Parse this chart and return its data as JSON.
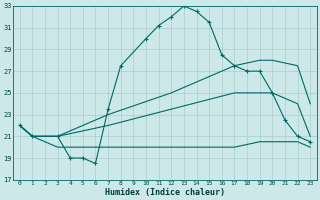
{
  "xlabel": "Humidex (Indice chaleur)",
  "background_color": "#cce8e8",
  "grid_color": "#aacece",
  "line_color": "#006868",
  "xlim": [
    -0.5,
    23.5
  ],
  "ylim": [
    17,
    33
  ],
  "yticks": [
    17,
    19,
    21,
    23,
    25,
    27,
    29,
    31,
    33
  ],
  "xticks": [
    0,
    1,
    2,
    3,
    4,
    5,
    6,
    7,
    8,
    9,
    10,
    11,
    12,
    13,
    14,
    15,
    16,
    17,
    18,
    19,
    20,
    21,
    22,
    23
  ],
  "lines": [
    {
      "x": [
        0,
        1,
        3,
        4,
        5,
        6,
        7,
        8,
        10,
        11,
        12,
        13,
        14,
        15,
        16,
        17,
        18,
        19,
        20,
        21,
        22,
        23
      ],
      "y": [
        22,
        21,
        21,
        19,
        19,
        18.5,
        23.5,
        27.5,
        30,
        31.2,
        32,
        33,
        32.5,
        31.5,
        28.5,
        27.5,
        27,
        27,
        25,
        22.5,
        21,
        20.5
      ],
      "has_markers": true,
      "linestyle": "-"
    },
    {
      "x": [
        0,
        1,
        3,
        7,
        12,
        17,
        19,
        20,
        22,
        23
      ],
      "y": [
        22,
        21,
        21,
        23,
        25,
        27.5,
        28,
        28,
        27.5,
        24
      ],
      "has_markers": false,
      "linestyle": "-"
    },
    {
      "x": [
        0,
        1,
        3,
        7,
        12,
        17,
        19,
        20,
        22,
        23
      ],
      "y": [
        22,
        21,
        21,
        22,
        23.5,
        25,
        25,
        25,
        24,
        21
      ],
      "has_markers": false,
      "linestyle": "-"
    },
    {
      "x": [
        0,
        1,
        3,
        7,
        12,
        17,
        19,
        22,
        23
      ],
      "y": [
        22,
        21,
        20,
        20,
        20,
        20,
        20.5,
        20.5,
        20
      ],
      "has_markers": false,
      "linestyle": "-"
    }
  ]
}
